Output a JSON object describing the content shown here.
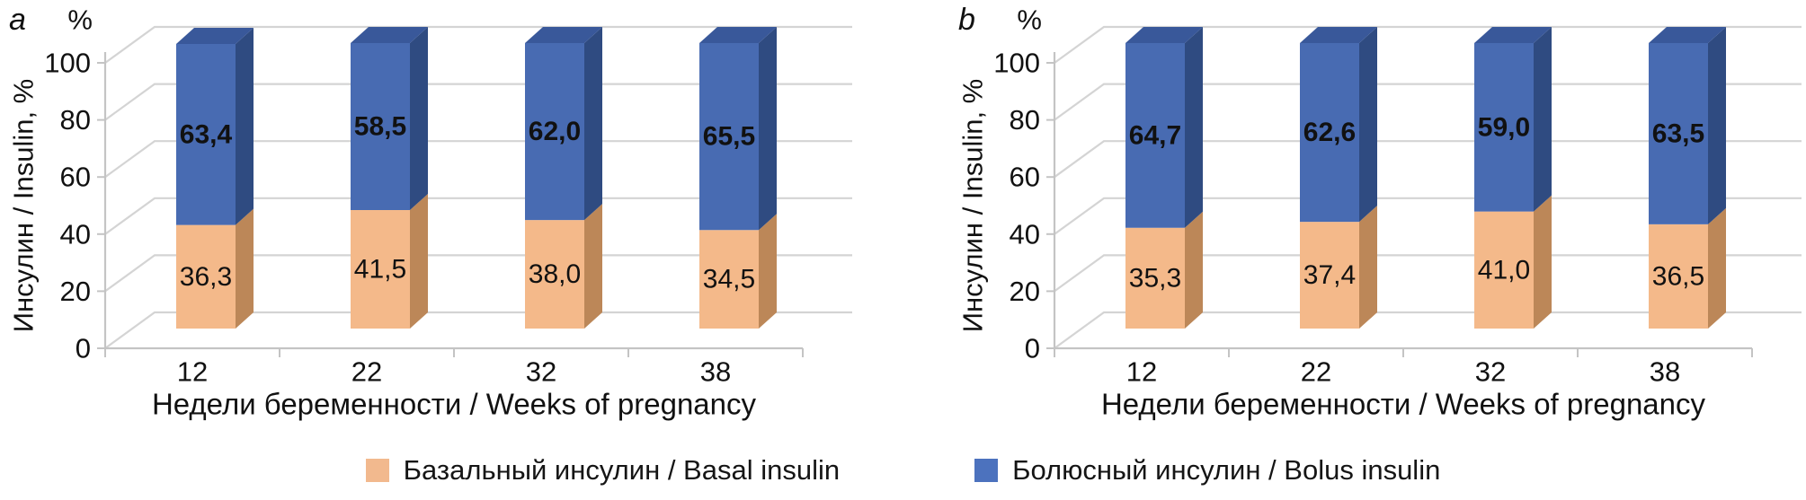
{
  "figure": {
    "legend": {
      "items": [
        {
          "label": "Базальный инсулин / Basal insulin",
          "color": "#F2B98E"
        },
        {
          "label": "Болюсный инсулин / Bolus insulin",
          "color": "#4C72BE"
        }
      ]
    },
    "colors": {
      "basal_front": "#F4B98A",
      "basal_side": "#BC8758",
      "bolus_front": "#486BB2",
      "bolus_side": "#2F4B81",
      "bolus_top": "#39589A",
      "gridline": "#D4D4D4",
      "axis": "#C4C4C4",
      "label_on_blue": "#FFFFFF",
      "label_on_orange": "#111111"
    }
  },
  "chart_data": [
    {
      "type": "bar",
      "stacked": true,
      "panel_label": "a",
      "y_unit_label": "%",
      "ylabel": "Инсулин / Insulin, %",
      "xlabel": "Недели беременности / Weeks of pregnancy",
      "categories": [
        "12",
        "22",
        "32",
        "38"
      ],
      "yticks": [
        "0",
        "20",
        "40",
        "60",
        "80",
        "100"
      ],
      "ytick_values": [
        0,
        20,
        40,
        60,
        80,
        100
      ],
      "ylim": [
        0,
        100
      ],
      "grid": true,
      "legend_position": "bottom-shared",
      "series": [
        {
          "name": "Базальный инсулин / Basal insulin",
          "values": [
            36.3,
            41.5,
            38.0,
            34.5
          ],
          "labels": [
            "36,3",
            "41,5",
            "38,0",
            "34,5"
          ]
        },
        {
          "name": "Болюсный инсулин / Bolus insulin",
          "values": [
            63.4,
            58.5,
            62.0,
            65.5
          ],
          "labels": [
            "63,4",
            "58,5",
            "62,0",
            "65,5"
          ]
        }
      ]
    },
    {
      "type": "bar",
      "stacked": true,
      "panel_label": "b",
      "y_unit_label": "%",
      "ylabel": "Инсулин / Insulin, %",
      "xlabel": "Недели беременности / Weeks of pregnancy",
      "categories": [
        "12",
        "22",
        "32",
        "38"
      ],
      "yticks": [
        "0",
        "20",
        "40",
        "60",
        "80",
        "100"
      ],
      "ytick_values": [
        0,
        20,
        40,
        60,
        80,
        100
      ],
      "ylim": [
        0,
        100
      ],
      "grid": true,
      "legend_position": "bottom-shared",
      "series": [
        {
          "name": "Базальный инсулин / Basal insulin",
          "values": [
            35.3,
            37.4,
            41.0,
            36.5
          ],
          "labels": [
            "35,3",
            "37,4",
            "41,0",
            "36,5"
          ]
        },
        {
          "name": "Болюсный инсулин / Bolus insulin",
          "values": [
            64.7,
            62.6,
            59.0,
            63.5
          ],
          "labels": [
            "64,7",
            "62,6",
            "59,0",
            "63,5"
          ]
        }
      ]
    }
  ]
}
